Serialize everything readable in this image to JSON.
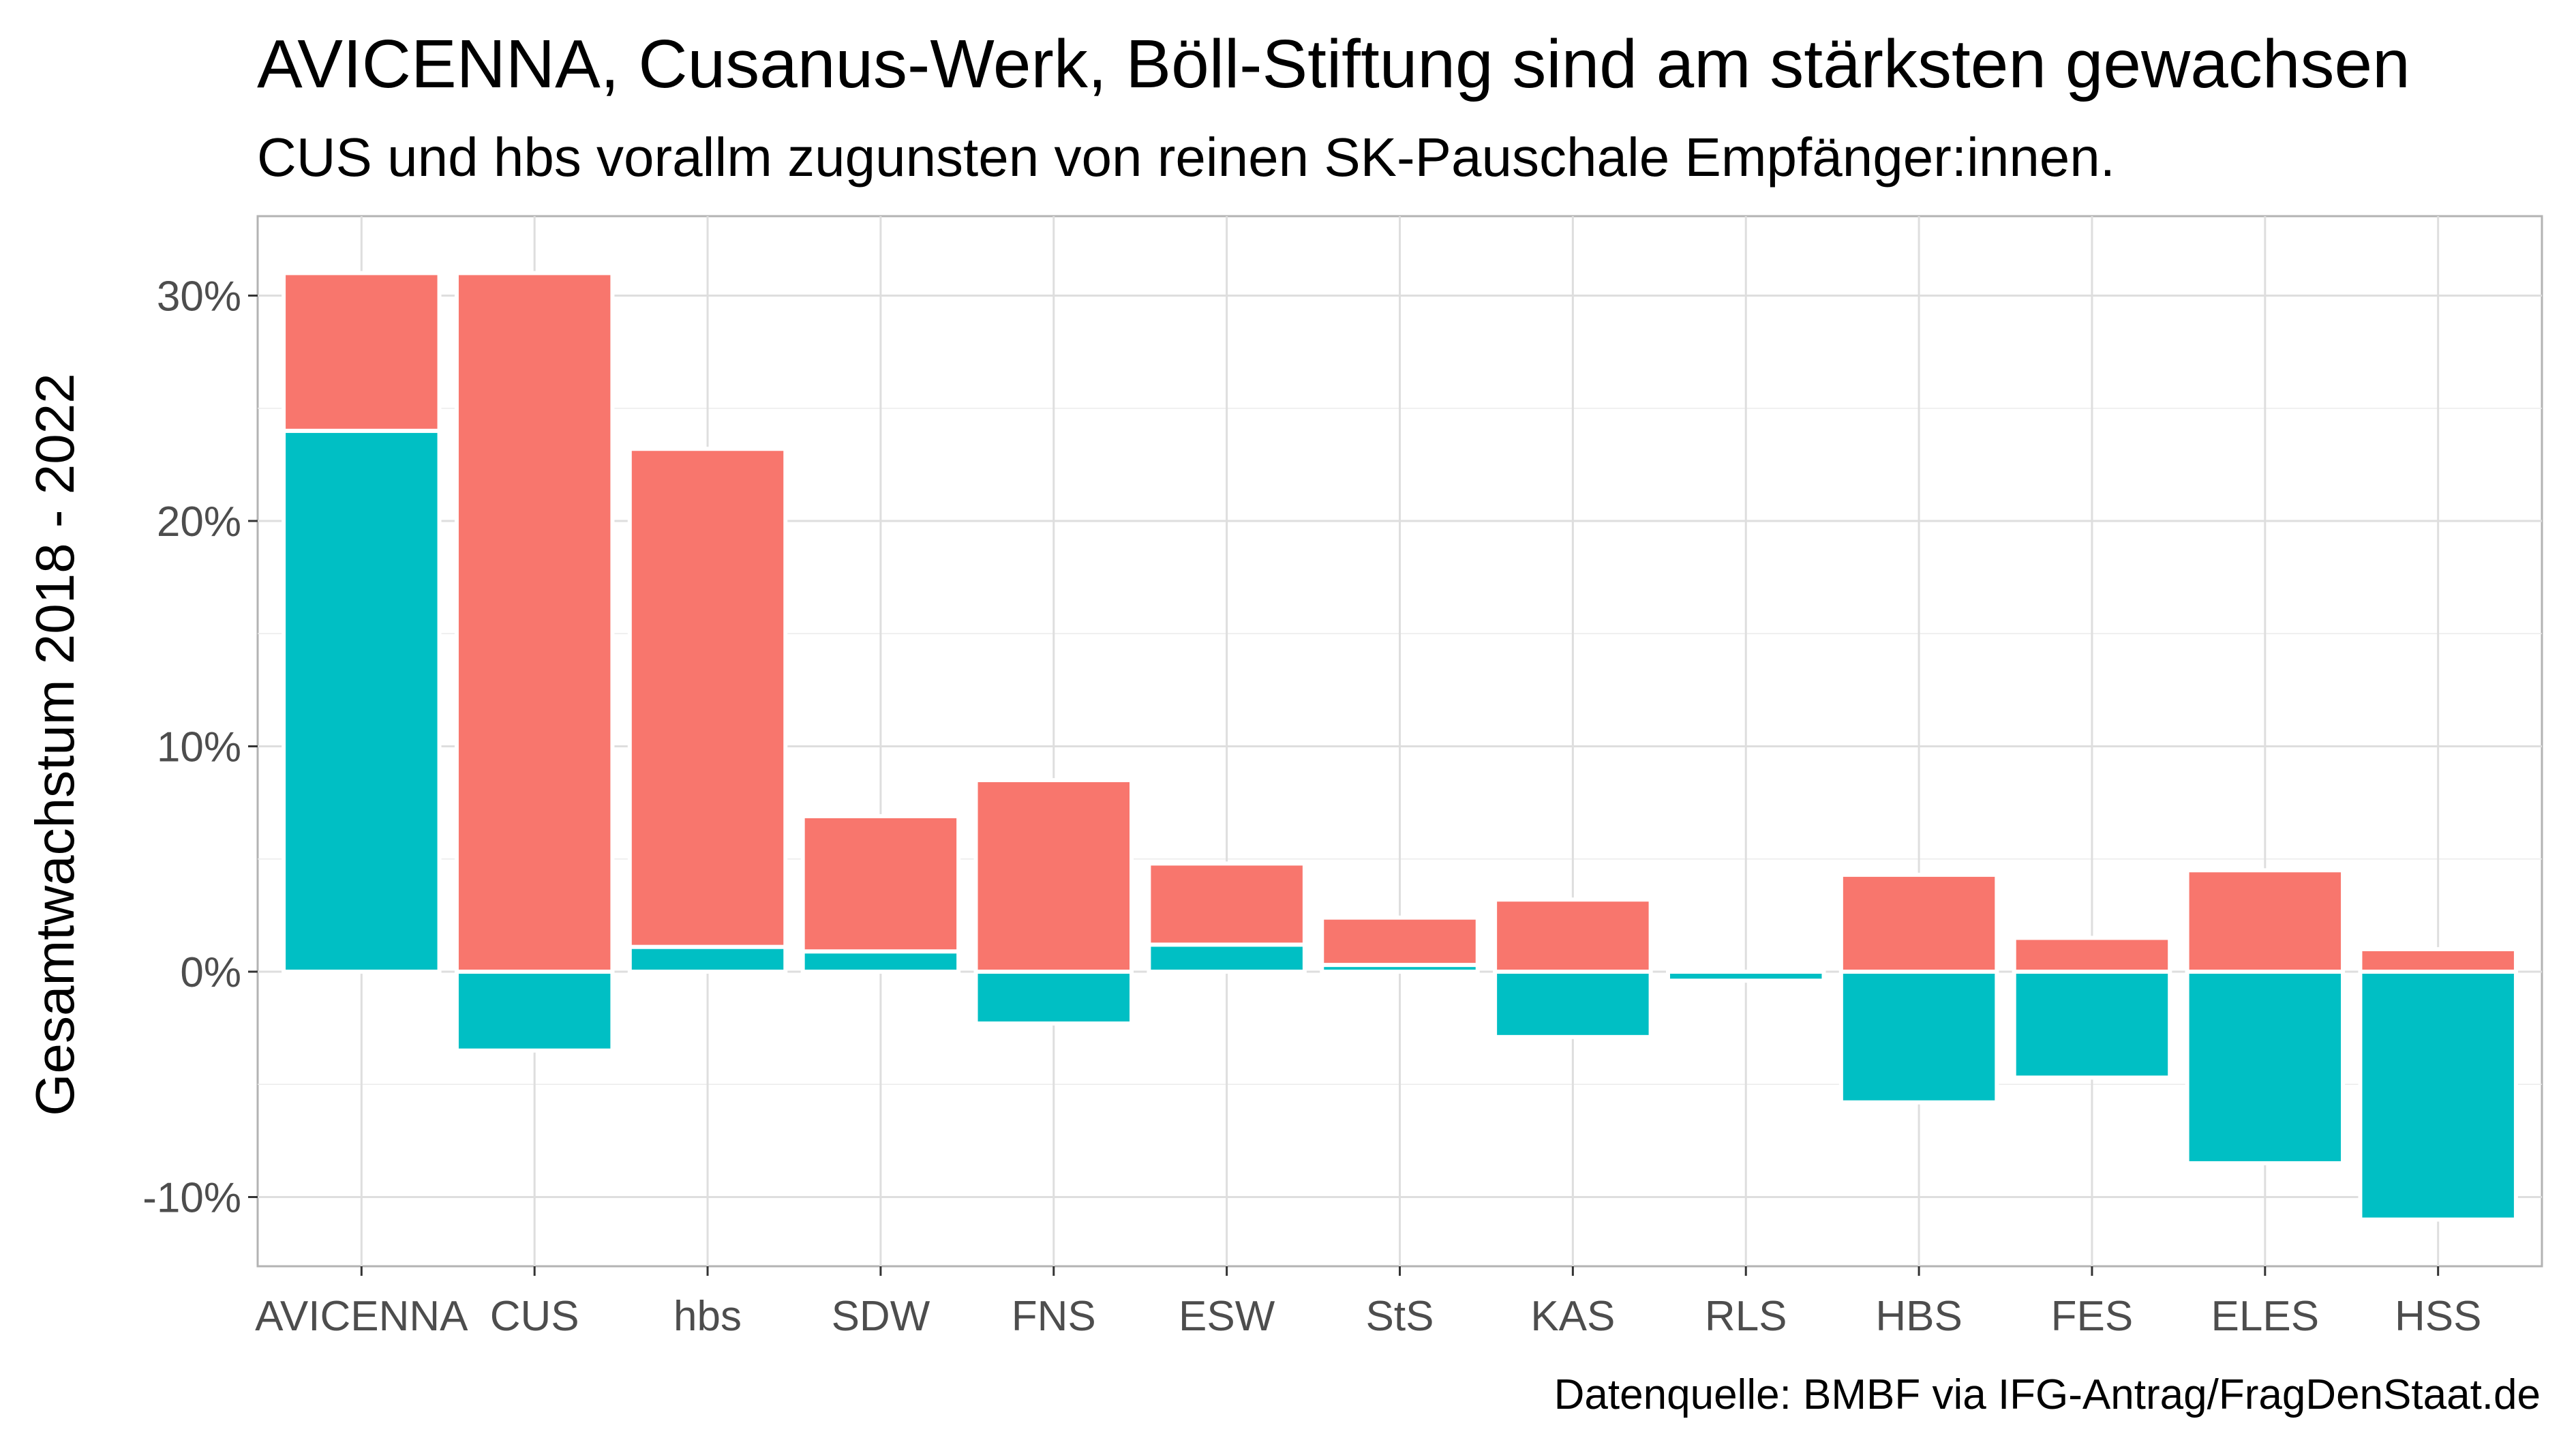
{
  "title": "AVICENNA, Cusanus-Werk, Böll-Stiftung sind am stärksten gewachsen",
  "subtitle": "CUS und hbs vorallm zugunsten von reinen SK-Pauschale Empfänger:innen.",
  "caption": "Datenquelle: BMBF via IFG-Antrag/FragDenStaat.de",
  "colors": {
    "salmon": "#F8766D",
    "teal": "#00BFC4",
    "grid": "#DEDEDE",
    "panel_border": "#B3B3B3"
  },
  "chart_data": {
    "type": "bar",
    "stacked": true,
    "xlabel": "",
    "ylabel": "Gesamtwachstum 2018 - 2022",
    "ylim": [
      -13,
      33
    ],
    "yticks": [
      -10,
      0,
      10,
      20,
      30
    ],
    "ytick_labels": [
      "-10%",
      "0%",
      "10%",
      "20%",
      "30%"
    ],
    "grid": true,
    "legend": "none",
    "categories": [
      "AVICENNA",
      "CUS",
      "hbs",
      "SDW",
      "FNS",
      "ESW",
      "StS",
      "KAS",
      "RLS",
      "HBS",
      "FES",
      "ELES",
      "HSS"
    ],
    "tick_labels": [
      "AVICENNA",
      "CUS",
      "hbs",
      "SDW",
      "FNS",
      "ESW",
      "StS",
      "KAS",
      "RLS",
      "HBS",
      "FES",
      "ELES",
      "HSS"
    ],
    "series": [
      {
        "color": "#00BFC4",
        "values": [
          24.0,
          -3.5,
          1.1,
          0.9,
          -2.3,
          1.2,
          0.3,
          -2.9,
          -0.4,
          -5.8,
          -4.7,
          -8.5,
          -11.0
        ]
      },
      {
        "color": "#F8766D",
        "values": [
          7.0,
          31.0,
          22.1,
          6.0,
          8.5,
          3.6,
          2.1,
          3.2,
          0.0,
          4.3,
          1.5,
          4.5,
          1.0
        ]
      }
    ]
  }
}
